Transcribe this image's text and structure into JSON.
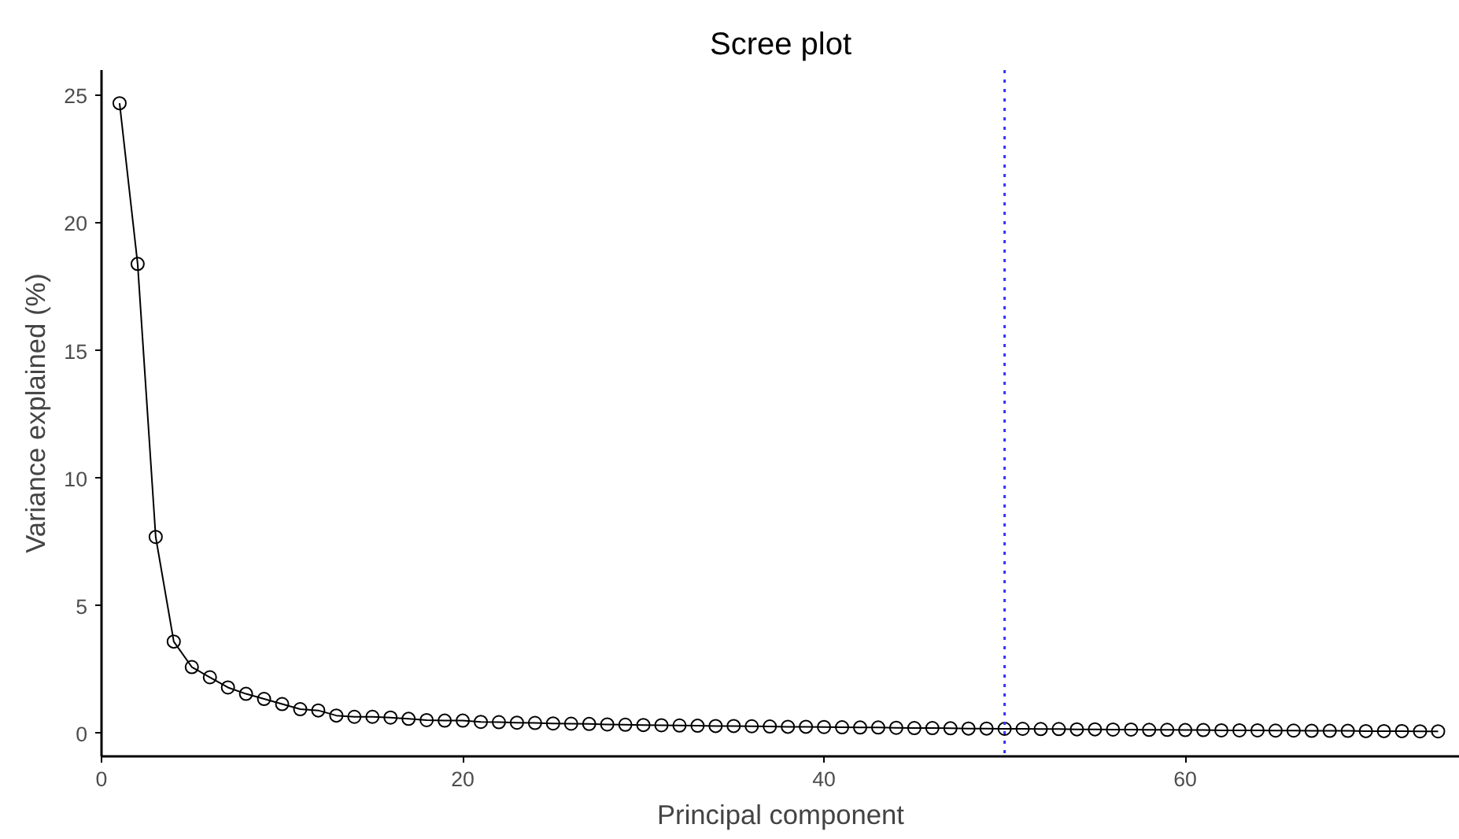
{
  "chart_data": {
    "type": "line",
    "title": "Scree plot",
    "xlabel": "Principal component",
    "ylabel": "Variance explained (%)",
    "x": [
      1,
      2,
      3,
      4,
      5,
      6,
      7,
      8,
      9,
      10,
      11,
      12,
      13,
      14,
      15,
      16,
      17,
      18,
      19,
      20,
      21,
      22,
      23,
      24,
      25,
      26,
      27,
      28,
      29,
      30,
      31,
      32,
      33,
      34,
      35,
      36,
      37,
      38,
      39,
      40,
      41,
      42,
      43,
      44,
      45,
      46,
      47,
      48,
      49,
      50,
      51,
      52,
      53,
      54,
      55,
      56,
      57,
      58,
      59,
      60,
      61,
      62,
      63,
      64,
      65,
      66,
      67,
      68,
      69,
      70,
      71,
      72,
      73,
      74
    ],
    "series": [
      {
        "color": "#000000",
        "values": [
          24.7,
          18.4,
          7.7,
          3.6,
          2.6,
          2.2,
          1.8,
          1.55,
          1.35,
          1.15,
          0.95,
          0.9,
          0.7,
          0.65,
          0.65,
          0.62,
          0.57,
          0.52,
          0.5,
          0.5,
          0.45,
          0.44,
          0.42,
          0.41,
          0.39,
          0.38,
          0.37,
          0.35,
          0.34,
          0.33,
          0.32,
          0.31,
          0.3,
          0.29,
          0.29,
          0.28,
          0.27,
          0.26,
          0.26,
          0.25,
          0.24,
          0.23,
          0.23,
          0.22,
          0.21,
          0.21,
          0.2,
          0.19,
          0.19,
          0.18,
          0.18,
          0.17,
          0.17,
          0.16,
          0.16,
          0.15,
          0.15,
          0.14,
          0.14,
          0.13,
          0.13,
          0.12,
          0.12,
          0.12,
          0.11,
          0.11,
          0.1,
          0.1,
          0.1,
          0.09,
          0.09,
          0.09,
          0.08,
          0.08
        ]
      }
    ],
    "xlim": [
      0,
      75.2
    ],
    "ylim": [
      -0.9,
      26
    ],
    "xticks": [
      0,
      20,
      40,
      60
    ],
    "yticks": [
      0,
      5,
      10,
      15,
      20,
      25
    ],
    "marker": "circle",
    "line_style": "solid",
    "grid": false,
    "ref_lines": [
      {
        "axis": "x",
        "value": 50,
        "color": "#3333ff",
        "line_style": "dotted"
      }
    ]
  }
}
